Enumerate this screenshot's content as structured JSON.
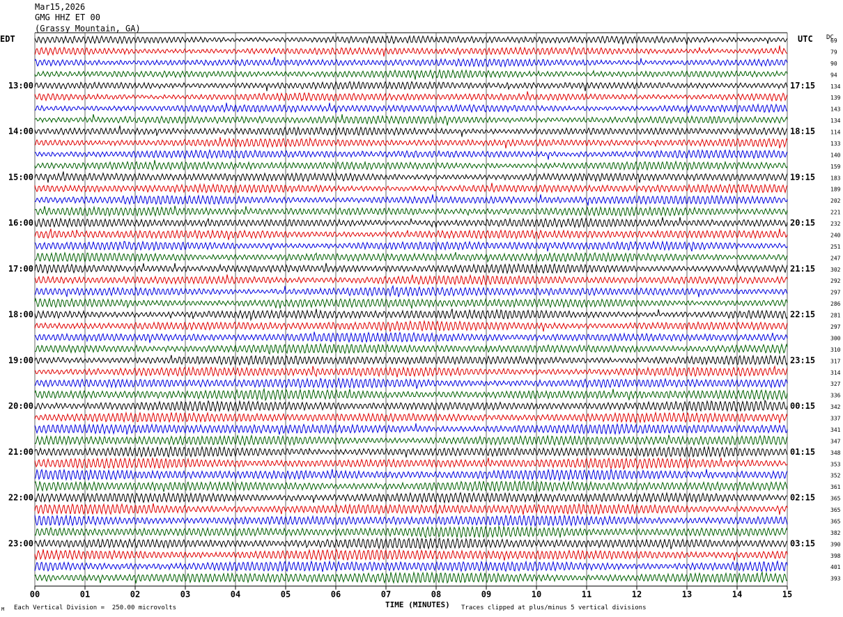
{
  "header": {
    "date": "Mar15,2026",
    "station": "GMG HHZ ET 00",
    "location": "(Grassy Mountain, GA)"
  },
  "labels": {
    "left_tz": "EDT",
    "right_tz": "UTC",
    "dc": "DC",
    "x_axis": "TIME (MINUTES)",
    "footer_left": "Each Vertical Division =  250.00 microvolts",
    "footer_right": "Traces clipped at plus/minus 5 vertical divisions",
    "corner_mark": "M"
  },
  "chart_data": {
    "type": "line",
    "title": "GMG HHZ ET 00",
    "xlabel": "TIME (MINUTES)",
    "ylabel": "",
    "xlim": [
      0,
      15
    ],
    "x_ticks": [
      "00",
      "01",
      "02",
      "03",
      "04",
      "05",
      "06",
      "07",
      "08",
      "09",
      "10",
      "11",
      "12",
      "13",
      "14",
      "15"
    ],
    "grid": true,
    "trace_minutes": 15,
    "trace_colors": [
      "#000000",
      "#e00000",
      "#0000e0",
      "#006000"
    ],
    "left_hour_labels": [
      "13:00",
      "14:00",
      "15:00",
      "16:00",
      "17:00",
      "18:00",
      "19:00",
      "20:00",
      "21:00",
      "22:00",
      "23:00"
    ],
    "right_hour_labels": [
      "17:15",
      "18:15",
      "19:15",
      "20:15",
      "21:15",
      "22:15",
      "23:15",
      "00:15",
      "01:15",
      "02:15",
      "03:15"
    ],
    "dc_values": [
      69,
      79,
      90,
      94,
      134,
      139,
      143,
      134,
      114,
      133,
      140,
      159,
      183,
      189,
      202,
      221,
      232,
      240,
      251,
      247,
      302,
      292,
      297,
      286,
      281,
      297,
      300,
      310,
      317,
      314,
      327,
      336,
      342,
      337,
      341,
      347,
      348,
      353,
      352,
      361,
      365,
      365,
      365,
      382,
      390,
      398,
      401,
      393
    ]
  }
}
